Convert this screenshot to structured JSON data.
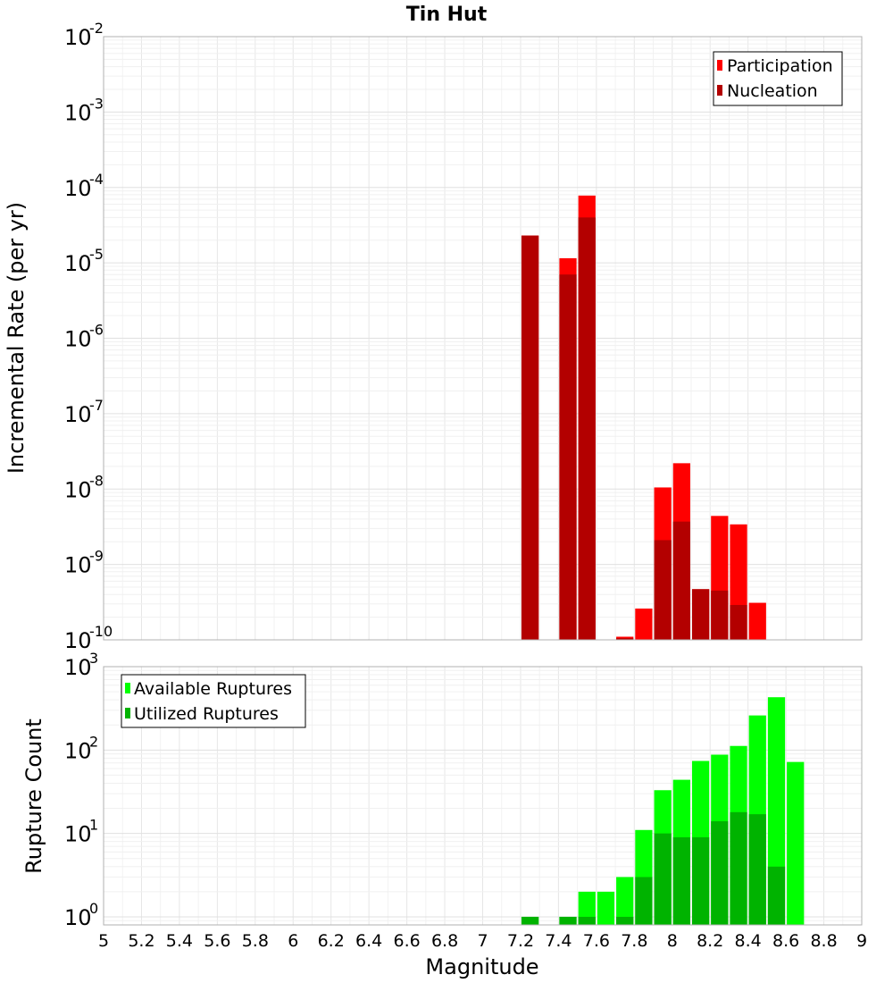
{
  "chart_data": [
    {
      "type": "bar",
      "title": "Tin Hut",
      "ylabel": "Incremental Rate (per yr)",
      "xlabel": "",
      "y_scale": "log",
      "ylim": [
        1e-10,
        0.01
      ],
      "xlim": [
        5,
        9
      ],
      "bar_width": 0.1,
      "grid": true,
      "legend_position": "top-right",
      "y_ticks": [
        {
          "base": "10",
          "exp": "-2",
          "value": 0.01
        },
        {
          "base": "10",
          "exp": "-3",
          "value": 0.001
        },
        {
          "base": "10",
          "exp": "-4",
          "value": 0.0001
        },
        {
          "base": "10",
          "exp": "-5",
          "value": 1e-05
        },
        {
          "base": "10",
          "exp": "-6",
          "value": 1e-06
        },
        {
          "base": "10",
          "exp": "-7",
          "value": 1e-07
        },
        {
          "base": "10",
          "exp": "-8",
          "value": 1e-08
        },
        {
          "base": "10",
          "exp": "-9",
          "value": 1e-09
        },
        {
          "base": "10",
          "exp": "-10",
          "value": 1e-10
        }
      ],
      "series": [
        {
          "name": "Participation",
          "color": "#ff0000",
          "points": [
            {
              "x": 7.25,
              "y": 2.3e-05
            },
            {
              "x": 7.45,
              "y": 1.15e-05
            },
            {
              "x": 7.55,
              "y": 7.8e-05
            },
            {
              "x": 7.75,
              "y": 1.1e-10
            },
            {
              "x": 7.85,
              "y": 2.6e-10
            },
            {
              "x": 7.95,
              "y": 1.05e-08
            },
            {
              "x": 8.05,
              "y": 2.2e-08
            },
            {
              "x": 8.15,
              "y": 4.7e-10
            },
            {
              "x": 8.25,
              "y": 4.4e-09
            },
            {
              "x": 8.35,
              "y": 3.4e-09
            },
            {
              "x": 8.45,
              "y": 3.1e-10
            }
          ]
        },
        {
          "name": "Nucleation",
          "color": "#b30000",
          "points": [
            {
              "x": 7.25,
              "y": 2.3e-05
            },
            {
              "x": 7.45,
              "y": 7e-06
            },
            {
              "x": 7.55,
              "y": 4e-05
            },
            {
              "x": 7.75,
              "y": 1.05e-10
            },
            {
              "x": 7.95,
              "y": 2.1e-09
            },
            {
              "x": 8.05,
              "y": 3.7e-09
            },
            {
              "x": 8.15,
              "y": 4.7e-10
            },
            {
              "x": 8.25,
              "y": 4.5e-10
            },
            {
              "x": 8.35,
              "y": 2.9e-10
            }
          ]
        }
      ]
    },
    {
      "type": "bar",
      "title": "",
      "ylabel": "Rupture Count",
      "xlabel": "Magnitude",
      "y_scale": "log",
      "ylim": [
        0.8,
        1000
      ],
      "xlim": [
        5,
        9
      ],
      "bar_width": 0.1,
      "grid": true,
      "legend_position": "top-left",
      "x_ticks": [
        "5",
        "5.2",
        "5.4",
        "5.6",
        "5.8",
        "6",
        "6.2",
        "6.4",
        "6.6",
        "6.8",
        "7",
        "7.2",
        "7.4",
        "7.6",
        "7.8",
        "8",
        "8.2",
        "8.4",
        "8.6",
        "8.8",
        "9"
      ],
      "y_ticks": [
        {
          "base": "10",
          "exp": "3",
          "value": 1000
        },
        {
          "base": "10",
          "exp": "2",
          "value": 100
        },
        {
          "base": "10",
          "exp": "1",
          "value": 10
        },
        {
          "base": "10",
          "exp": "0",
          "value": 1
        }
      ],
      "series": [
        {
          "name": "Available Ruptures",
          "color": "#00ff00",
          "points": [
            {
              "x": 7.25,
              "y": 1
            },
            {
              "x": 7.45,
              "y": 1
            },
            {
              "x": 7.55,
              "y": 2
            },
            {
              "x": 7.65,
              "y": 2
            },
            {
              "x": 7.75,
              "y": 3
            },
            {
              "x": 7.85,
              "y": 11
            },
            {
              "x": 7.95,
              "y": 33
            },
            {
              "x": 8.05,
              "y": 44
            },
            {
              "x": 8.15,
              "y": 74
            },
            {
              "x": 8.25,
              "y": 88
            },
            {
              "x": 8.35,
              "y": 112
            },
            {
              "x": 8.45,
              "y": 260
            },
            {
              "x": 8.55,
              "y": 430
            },
            {
              "x": 8.65,
              "y": 72
            }
          ]
        },
        {
          "name": "Utilized Ruptures",
          "color": "#00b300",
          "points": [
            {
              "x": 7.25,
              "y": 1
            },
            {
              "x": 7.45,
              "y": 1
            },
            {
              "x": 7.55,
              "y": 1
            },
            {
              "x": 7.75,
              "y": 1
            },
            {
              "x": 7.85,
              "y": 3
            },
            {
              "x": 7.95,
              "y": 10
            },
            {
              "x": 8.05,
              "y": 9
            },
            {
              "x": 8.15,
              "y": 9
            },
            {
              "x": 8.25,
              "y": 14
            },
            {
              "x": 8.35,
              "y": 18
            },
            {
              "x": 8.45,
              "y": 17
            },
            {
              "x": 8.55,
              "y": 4
            }
          ]
        }
      ]
    }
  ]
}
